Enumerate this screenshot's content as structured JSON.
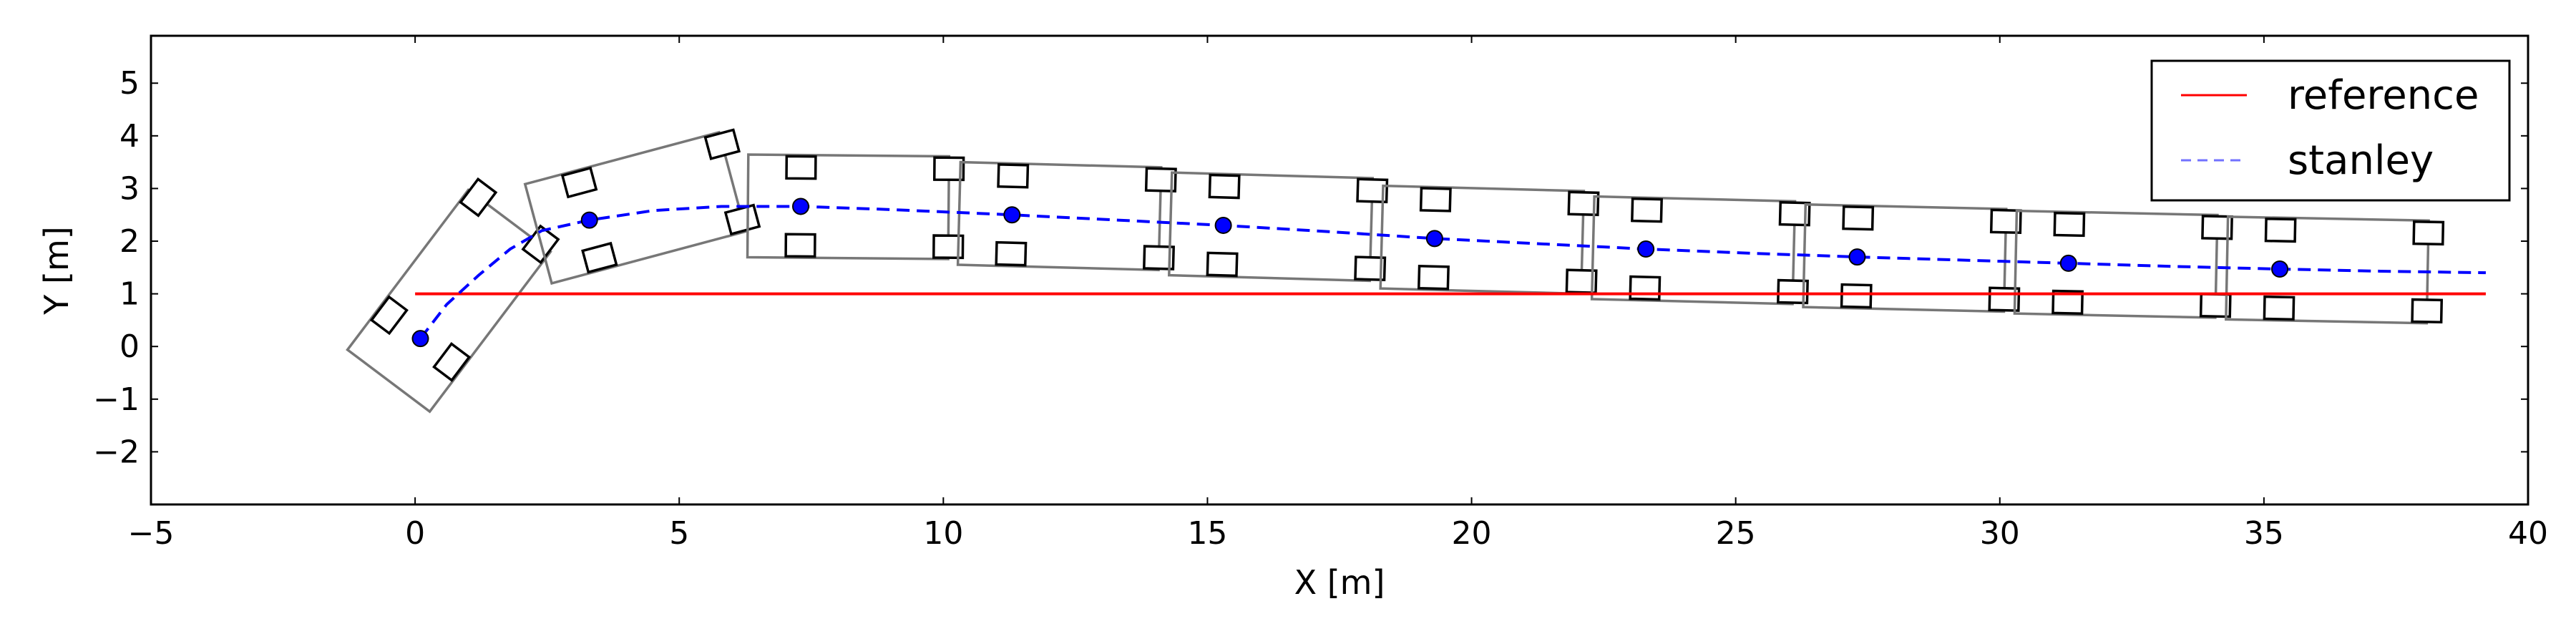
{
  "chart_data": {
    "type": "line",
    "title": "",
    "xlabel": "X [m]",
    "ylabel": "Y [m]",
    "xlim": [
      -5,
      40
    ],
    "ylim": [
      -3,
      5.9
    ],
    "xticks": [
      -5,
      0,
      5,
      10,
      15,
      20,
      25,
      30,
      35,
      40
    ],
    "xtick_labels": [
      "−5",
      "0",
      "5",
      "10",
      "15",
      "20",
      "25",
      "30",
      "35",
      "40"
    ],
    "yticks": [
      -2,
      -1,
      0,
      1,
      2,
      3,
      4,
      5
    ],
    "ytick_labels": [
      "−2",
      "−1",
      "0",
      "1",
      "2",
      "3",
      "4",
      "5"
    ],
    "grid": false,
    "legend_position": "top-right",
    "series": [
      {
        "name": "reference",
        "color": "#ff0000",
        "style": "solid",
        "x": [
          0,
          39.2
        ],
        "y": [
          1.0,
          1.0
        ]
      },
      {
        "name": "stanley",
        "color": "#0000ff",
        "style": "dashed",
        "x": [
          0.1,
          0.6,
          1.2,
          1.8,
          2.4,
          3.3,
          4.5,
          5.8,
          7.3,
          9.0,
          11.3,
          13.3,
          15.3,
          17.3,
          19.3,
          21.3,
          23.3,
          25.3,
          27.3,
          29.3,
          31.3,
          33.3,
          35.3,
          37.2,
          39.2
        ],
        "y": [
          0.15,
          0.8,
          1.35,
          1.85,
          2.2,
          2.4,
          2.58,
          2.66,
          2.66,
          2.6,
          2.5,
          2.4,
          2.3,
          2.18,
          2.05,
          1.95,
          1.85,
          1.77,
          1.7,
          1.64,
          1.58,
          1.52,
          1.47,
          1.43,
          1.4
        ]
      }
    ],
    "markers": {
      "color": "#0000ff",
      "x": [
        0.1,
        3.3,
        7.3,
        11.3,
        15.3,
        19.3,
        23.3,
        27.3,
        31.3,
        35.3
      ],
      "y": [
        0.15,
        2.4,
        2.66,
        2.5,
        2.3,
        2.05,
        1.85,
        1.7,
        1.58,
        1.47
      ]
    },
    "vehicles": [
      {
        "x": 0.1,
        "y": 0.15,
        "yaw_deg": 53
      },
      {
        "x": 3.3,
        "y": 2.4,
        "yaw_deg": 15
      },
      {
        "x": 7.3,
        "y": 2.66,
        "yaw_deg": -0.5
      },
      {
        "x": 11.3,
        "y": 2.5,
        "yaw_deg": -1.5
      },
      {
        "x": 15.3,
        "y": 2.3,
        "yaw_deg": -1.6
      },
      {
        "x": 19.3,
        "y": 2.05,
        "yaw_deg": -1.5
      },
      {
        "x": 23.3,
        "y": 1.85,
        "yaw_deg": -1.4
      },
      {
        "x": 27.3,
        "y": 1.7,
        "yaw_deg": -1.3
      },
      {
        "x": 31.3,
        "y": 1.58,
        "yaw_deg": -1.2
      },
      {
        "x": 35.3,
        "y": 1.47,
        "yaw_deg": -1.1
      }
    ]
  }
}
